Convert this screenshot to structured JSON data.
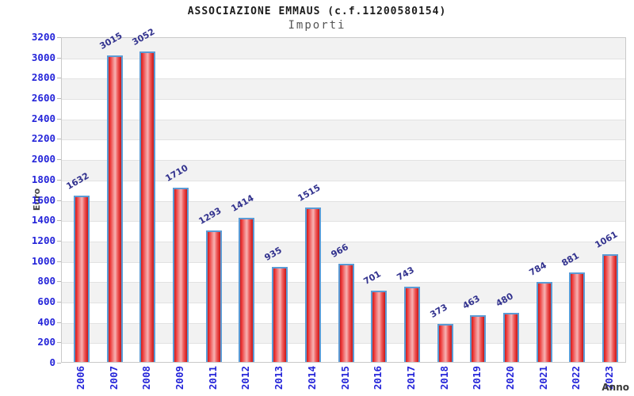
{
  "header": {
    "title": "ASSOCIAZIONE EMMAUS (c.f.11200580154)",
    "subtitle": "Importi"
  },
  "chart_data": {
    "type": "bar",
    "title": "ASSOCIAZIONE EMMAUS (c.f.11200580154)",
    "subtitle": "Importi",
    "xlabel": "Anno",
    "ylabel": "Euro",
    "categories": [
      "2006",
      "2007",
      "2008",
      "2009",
      "2011",
      "2012",
      "2013",
      "2014",
      "2015",
      "2016",
      "2017",
      "2018",
      "2019",
      "2020",
      "2021",
      "2022",
      "2023"
    ],
    "values": [
      1632,
      3015,
      3052,
      1710,
      1293,
      1414,
      935,
      1515,
      966,
      701,
      743,
      373,
      463,
      480,
      784,
      881,
      1061
    ],
    "ylim": [
      0,
      3200
    ],
    "ytick_step": 200,
    "grid": "horizontal-bands",
    "legend": "none",
    "colors": {
      "bar_fill": "#ee3b3b",
      "bar_highlight": "#f7b3b3",
      "bar_border": "#5b9bd5",
      "tick_label": "#2424d9",
      "value_label": "#32328e",
      "band_gray": "#f2f2f2",
      "plot_border": "#c9c9c9"
    }
  }
}
